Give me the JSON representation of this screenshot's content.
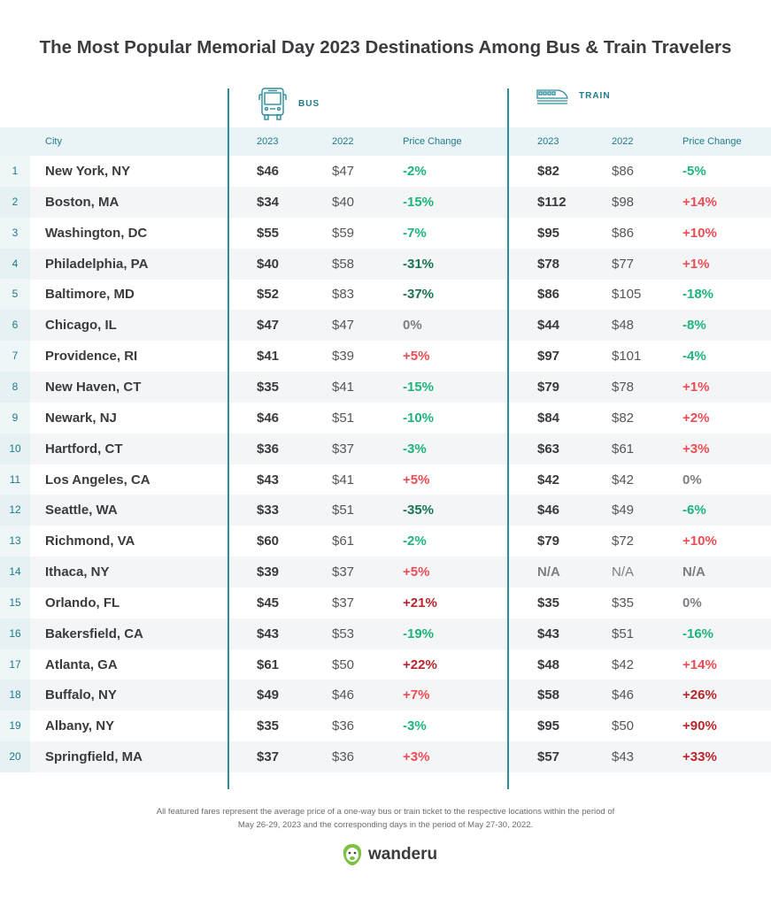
{
  "title": "The Most Popular Memorial Day 2023 Destinations Among Bus & Train Travelers",
  "groups": {
    "bus": "BUS",
    "train": "TRAIN"
  },
  "headers": {
    "city": "City",
    "y2023": "2023",
    "y2022": "2022",
    "change": "Price Change"
  },
  "colors": {
    "accent": "#1e7b8a",
    "strong_decrease": "#17744f",
    "decrease": "#1db47a",
    "increase": "#ec4d52",
    "strong_increase": "#b8262b",
    "neutral": "#7c7e85"
  },
  "chart_data": {
    "type": "table",
    "title": "The Most Popular Memorial Day 2023 Destinations Among Bus & Train Travelers",
    "columns": [
      "",
      "City",
      "Bus 2023",
      "Bus 2022",
      "Bus Price Change",
      "Train 2023",
      "Train 2022",
      "Train Price Change"
    ],
    "rows": [
      [
        "1",
        "New York, NY",
        "$46",
        "$47",
        "-2%",
        "$82",
        "$86",
        "-5%"
      ],
      [
        "2",
        "Boston, MA",
        "$34",
        "$40",
        "-15%",
        "$112",
        "$98",
        "+14%"
      ],
      [
        "3",
        "Washington, DC",
        "$55",
        "$59",
        "-7%",
        "$95",
        "$86",
        "+10%"
      ],
      [
        "4",
        "Philadelphia, PA",
        "$40",
        "$58",
        "-31%",
        "$78",
        "$77",
        "+1%"
      ],
      [
        "5",
        "Baltimore, MD",
        "$52",
        "$83",
        "-37%",
        "$86",
        "$105",
        "-18%"
      ],
      [
        "6",
        "Chicago, IL",
        "$47",
        "$47",
        "0%",
        "$44",
        "$48",
        "-8%"
      ],
      [
        "7",
        "Providence, RI",
        "$41",
        "$39",
        "+5%",
        "$97",
        "$101",
        "-4%"
      ],
      [
        "8",
        "New Haven, CT",
        "$35",
        "$41",
        "-15%",
        "$79",
        "$78",
        "+1%"
      ],
      [
        "9",
        "Newark, NJ",
        "$46",
        "$51",
        "-10%",
        "$84",
        "$82",
        "+2%"
      ],
      [
        "10",
        "Hartford, CT",
        "$36",
        "$37",
        "-3%",
        "$63",
        "$61",
        "+3%"
      ],
      [
        "11",
        "Los Angeles, CA",
        "$43",
        "$41",
        "+5%",
        "$42",
        "$42",
        "0%"
      ],
      [
        "12",
        "Seattle, WA",
        "$33",
        "$51",
        "-35%",
        "$46",
        "$49",
        "-6%"
      ],
      [
        "13",
        "Richmond, VA",
        "$60",
        "$61",
        "-2%",
        "$79",
        "$72",
        "+10%"
      ],
      [
        "14",
        "Ithaca, NY",
        "$39",
        "$37",
        "+5%",
        "N/A",
        "N/A",
        "N/A"
      ],
      [
        "15",
        "Orlando, FL",
        "$45",
        "$37",
        "+21%",
        "$35",
        "$35",
        "0%"
      ],
      [
        "16",
        "Bakersfield, CA",
        "$43",
        "$53",
        "-19%",
        "$43",
        "$51",
        "-16%"
      ],
      [
        "17",
        "Atlanta, GA",
        "$61",
        "$50",
        "+22%",
        "$48",
        "$42",
        "+14%"
      ],
      [
        "18",
        "Buffalo, NY",
        "$49",
        "$46",
        "+7%",
        "$58",
        "$46",
        "+26%"
      ],
      [
        "19",
        "Albany, NY",
        "$35",
        "$36",
        "-3%",
        "$95",
        "$50",
        "+90%"
      ],
      [
        "20",
        "Springfield, MA",
        "$37",
        "$36",
        "+3%",
        "$57",
        "$43",
        "+33%"
      ]
    ]
  },
  "footnote": [
    "All featured fares represent the average price of a one-way bus or train ticket to the respective locations within the period of",
    "May 26-29, 2023 and the corresponding days in the period of May 27-30, 2022."
  ],
  "logo": "wanderu"
}
